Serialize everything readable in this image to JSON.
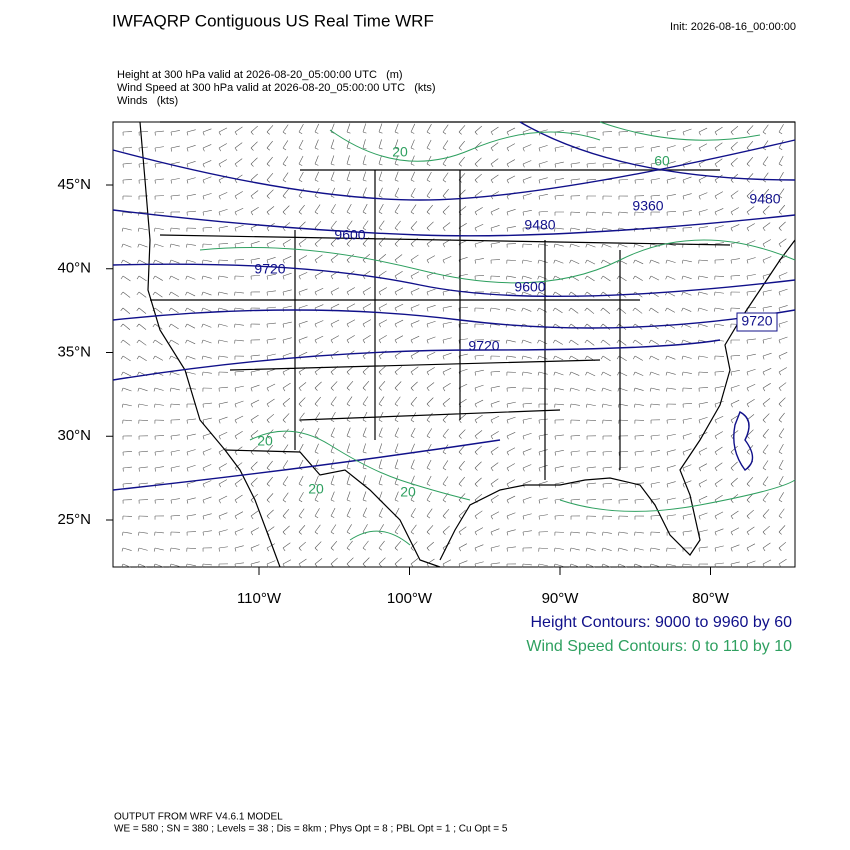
{
  "title": "IWFAQRP Contiguous US Real Time WRF",
  "init": "Init: 2026-08-16_00:00:00",
  "fields": [
    "Height at 300 hPa valid at 2026-08-20_05:00:00 UTC   (m)",
    "Wind Speed at 300 hPa valid at 2026-08-20_05:00:00 UTC   (kts)",
    "Winds   (kts)"
  ],
  "map": {
    "lat_ticks": [
      {
        "value": 45,
        "label": "45°N"
      },
      {
        "value": 40,
        "label": "40°N"
      },
      {
        "value": 35,
        "label": "35°N"
      },
      {
        "value": 30,
        "label": "30°N"
      },
      {
        "value": 25,
        "label": "25°N"
      }
    ],
    "lon_ticks": [
      {
        "value": -110,
        "label": "110°W"
      },
      {
        "value": -100,
        "label": "100°W"
      },
      {
        "value": -90,
        "label": "90°W"
      },
      {
        "value": -80,
        "label": "80°W"
      }
    ],
    "height_contour_labels": [
      9600,
      9720,
      9480,
      9360,
      9480,
      9600,
      9720,
      9720
    ],
    "wind_contour_labels": [
      60,
      20,
      20,
      20,
      20
    ],
    "height_color": "#10108a",
    "wind_color": "#2fa060"
  },
  "legend": [
    "Height Contours: 9000 to 9960 by 60",
    "Wind Speed Contours: 0 to 110 by 10"
  ],
  "footer": [
    "OUTPUT FROM WRF V4.6.1 MODEL",
    "WE = 580 ; SN = 380 ; Levels = 38 ; Dis = 8km ; Phys Opt = 8 ; PBL Opt = 1 ; Cu Opt = 5"
  ]
}
